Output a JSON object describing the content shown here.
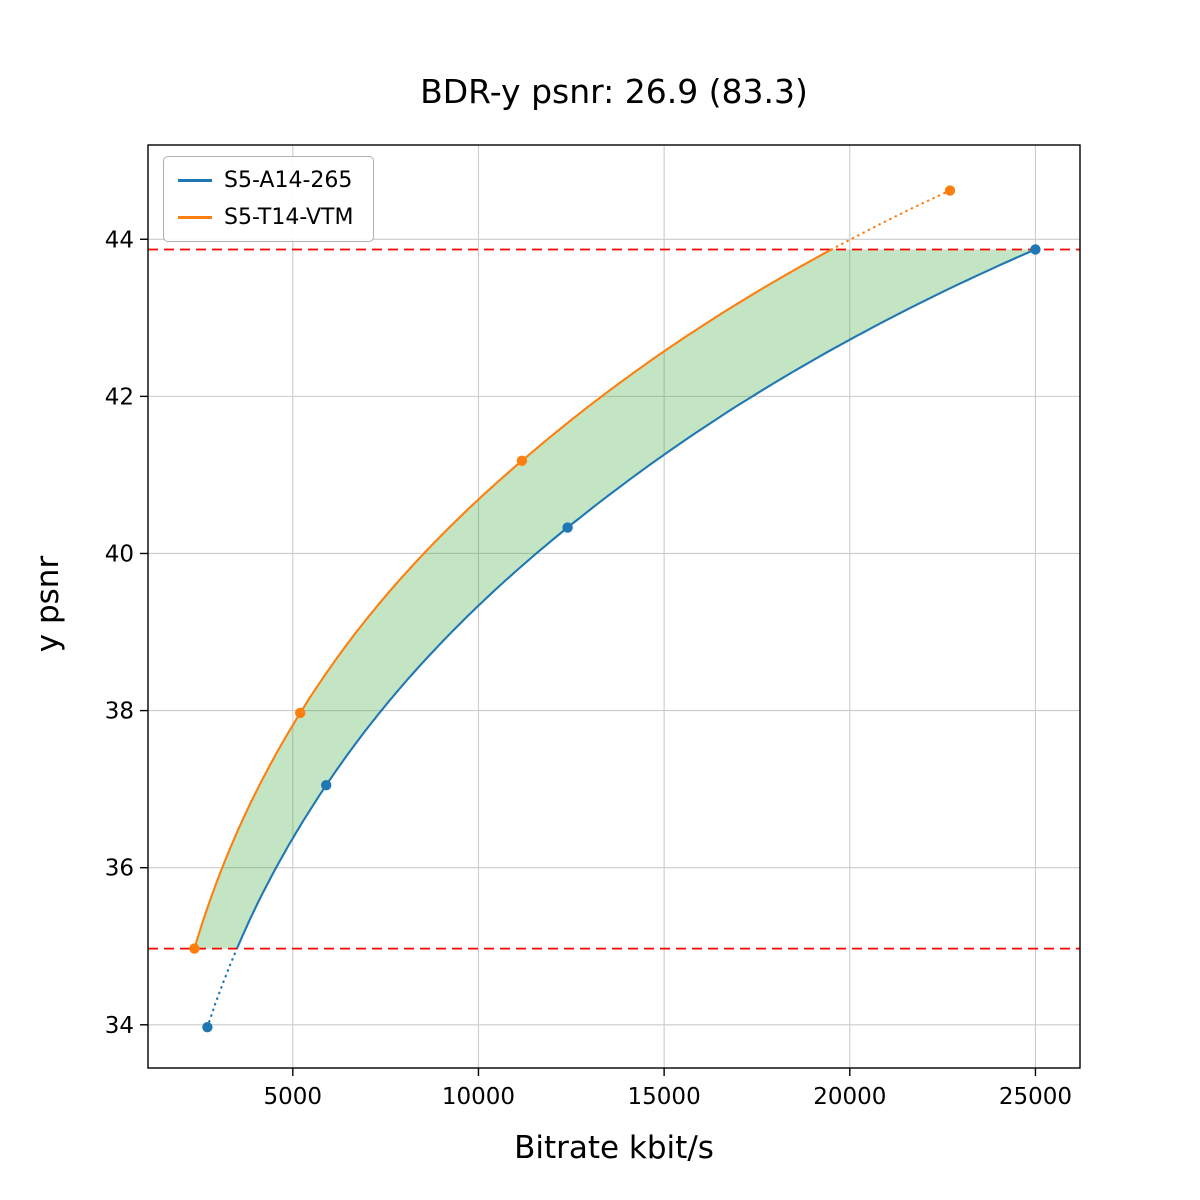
{
  "chart_data": {
    "type": "line",
    "title": "BDR-y psnr: 26.9 (83.3)",
    "xlabel": "Bitrate kbit/s",
    "ylabel": "y psnr",
    "xlim": [
      1100,
      26200
    ],
    "ylim": [
      33.45,
      45.2
    ],
    "xticks": [
      5000,
      10000,
      15000,
      20000,
      25000
    ],
    "yticks": [
      34,
      36,
      38,
      40,
      42,
      44
    ],
    "grid": true,
    "grid_color": "#cccccc",
    "legend_position": "upper left",
    "series": [
      {
        "name": "S5-A14-265",
        "color": "#1f77b4",
        "points": [
          [
            2700,
            33.97
          ],
          [
            5900,
            37.05
          ],
          [
            12400,
            40.33
          ],
          [
            25000,
            43.87
          ]
        ]
      },
      {
        "name": "S5-T14-VTM",
        "color": "#ff7f0e",
        "points": [
          [
            2350,
            34.97
          ],
          [
            5200,
            37.97
          ],
          [
            11170,
            41.18
          ],
          [
            22700,
            44.62
          ]
        ]
      }
    ],
    "hlines": [
      {
        "y": 43.87,
        "color": "#ff0000",
        "style": "dashed"
      },
      {
        "y": 34.97,
        "color": "#ff0000",
        "style": "dashed"
      }
    ],
    "fill_between": {
      "color": "rgba(44,160,44,0.28)",
      "between": "curves",
      "y_from": 34.97,
      "y_to": 43.87
    }
  }
}
